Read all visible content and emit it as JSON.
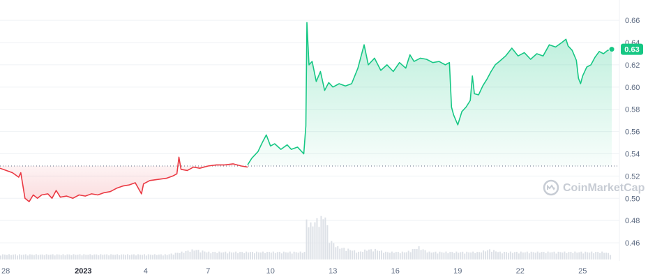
{
  "chart_data": {
    "type": "line",
    "y_ticks": [
      "0.66",
      "0.64",
      "0.62",
      "0.60",
      "0.58",
      "0.56",
      "0.54",
      "0.52",
      "0.50",
      "0.48",
      "0.46"
    ],
    "y_range": [
      0.445,
      0.672
    ],
    "x_ticks": [
      {
        "label": "28",
        "bold": false,
        "x": 0
      },
      {
        "label": "2023",
        "bold": true,
        "x": 4
      },
      {
        "label": "4",
        "bold": false,
        "x": 7
      },
      {
        "label": "7",
        "bold": false,
        "x": 10
      },
      {
        "label": "10",
        "bold": false,
        "x": 13
      },
      {
        "label": "13",
        "bold": false,
        "x": 16
      },
      {
        "label": "16",
        "bold": false,
        "x": 19
      },
      {
        "label": "19",
        "bold": false,
        "x": 22
      },
      {
        "label": "22",
        "bold": false,
        "x": 25
      },
      {
        "label": "25",
        "bold": false,
        "x": 28
      }
    ],
    "x_range": [
      0,
      29.5
    ],
    "reference_price": 0.529,
    "current_price_label": "0.63",
    "series": [
      {
        "values": [
          [
            0.0,
            0.527
          ],
          [
            0.3,
            0.525
          ],
          [
            0.6,
            0.523
          ],
          [
            0.9,
            0.519
          ],
          [
            1.0,
            0.523
          ],
          [
            1.2,
            0.5
          ],
          [
            1.4,
            0.497
          ],
          [
            1.6,
            0.503
          ],
          [
            1.8,
            0.5
          ],
          [
            2.0,
            0.503
          ],
          [
            2.3,
            0.504
          ],
          [
            2.5,
            0.5
          ],
          [
            2.7,
            0.507
          ],
          [
            2.9,
            0.501
          ],
          [
            3.2,
            0.502
          ],
          [
            3.5,
            0.5
          ],
          [
            3.8,
            0.503
          ],
          [
            4.1,
            0.502
          ],
          [
            4.4,
            0.504
          ],
          [
            4.7,
            0.503
          ],
          [
            5.0,
            0.505
          ],
          [
            5.3,
            0.506
          ],
          [
            5.6,
            0.509
          ],
          [
            5.9,
            0.511
          ],
          [
            6.2,
            0.512
          ],
          [
            6.5,
            0.514
          ],
          [
            6.8,
            0.504
          ],
          [
            6.9,
            0.513
          ],
          [
            7.2,
            0.516
          ],
          [
            7.6,
            0.517
          ],
          [
            8.0,
            0.518
          ],
          [
            8.3,
            0.52
          ],
          [
            8.5,
            0.522
          ],
          [
            8.6,
            0.537
          ],
          [
            8.7,
            0.526
          ],
          [
            9.0,
            0.525
          ],
          [
            9.3,
            0.528
          ],
          [
            9.6,
            0.527
          ],
          [
            10.0,
            0.529
          ],
          [
            10.4,
            0.53
          ],
          [
            10.8,
            0.53
          ],
          [
            11.2,
            0.531
          ],
          [
            11.6,
            0.529
          ],
          [
            11.9,
            0.528
          ]
        ],
        "color": "#ea3943"
      },
      {
        "values": [
          [
            11.9,
            0.53
          ],
          [
            12.1,
            0.536
          ],
          [
            12.4,
            0.542
          ],
          [
            12.6,
            0.55
          ],
          [
            12.8,
            0.557
          ],
          [
            13.0,
            0.547
          ],
          [
            13.2,
            0.549
          ],
          [
            13.5,
            0.544
          ],
          [
            13.8,
            0.548
          ],
          [
            14.0,
            0.544
          ],
          [
            14.3,
            0.546
          ],
          [
            14.6,
            0.54
          ],
          [
            14.7,
            0.565
          ],
          [
            14.75,
            0.658
          ],
          [
            14.85,
            0.62
          ],
          [
            15.0,
            0.623
          ],
          [
            15.2,
            0.605
          ],
          [
            15.4,
            0.614
          ],
          [
            15.6,
            0.597
          ],
          [
            15.8,
            0.604
          ],
          [
            16.0,
            0.6
          ],
          [
            16.3,
            0.603
          ],
          [
            16.6,
            0.601
          ],
          [
            16.9,
            0.603
          ],
          [
            17.2,
            0.617
          ],
          [
            17.5,
            0.638
          ],
          [
            17.7,
            0.62
          ],
          [
            18.0,
            0.626
          ],
          [
            18.3,
            0.615
          ],
          [
            18.6,
            0.62
          ],
          [
            18.9,
            0.614
          ],
          [
            19.2,
            0.622
          ],
          [
            19.5,
            0.617
          ],
          [
            19.7,
            0.629
          ],
          [
            19.9,
            0.623
          ],
          [
            20.2,
            0.626
          ],
          [
            20.5,
            0.625
          ],
          [
            20.8,
            0.622
          ],
          [
            21.1,
            0.623
          ],
          [
            21.4,
            0.62
          ],
          [
            21.6,
            0.622
          ],
          [
            21.7,
            0.582
          ],
          [
            21.8,
            0.575
          ],
          [
            22.0,
            0.566
          ],
          [
            22.2,
            0.578
          ],
          [
            22.4,
            0.582
          ],
          [
            22.6,
            0.588
          ],
          [
            22.7,
            0.61
          ],
          [
            22.8,
            0.594
          ],
          [
            23.0,
            0.593
          ],
          [
            23.2,
            0.601
          ],
          [
            23.4,
            0.607
          ],
          [
            23.6,
            0.614
          ],
          [
            23.8,
            0.62
          ],
          [
            24.0,
            0.623
          ],
          [
            24.3,
            0.628
          ],
          [
            24.6,
            0.635
          ],
          [
            24.9,
            0.628
          ],
          [
            25.2,
            0.631
          ],
          [
            25.5,
            0.625
          ],
          [
            25.8,
            0.63
          ],
          [
            26.1,
            0.628
          ],
          [
            26.4,
            0.638
          ],
          [
            26.7,
            0.636
          ],
          [
            27.0,
            0.64
          ],
          [
            27.2,
            0.643
          ],
          [
            27.3,
            0.637
          ],
          [
            27.5,
            0.633
          ],
          [
            27.7,
            0.624
          ],
          [
            27.8,
            0.608
          ],
          [
            27.9,
            0.603
          ],
          [
            28.0,
            0.61
          ],
          [
            28.2,
            0.618
          ],
          [
            28.4,
            0.62
          ],
          [
            28.6,
            0.627
          ],
          [
            28.8,
            0.632
          ],
          [
            29.0,
            0.63
          ],
          [
            29.2,
            0.633
          ],
          [
            29.4,
            0.634
          ]
        ],
        "color": "#16c784"
      }
    ],
    "volume": [
      [
        0.0,
        2
      ],
      [
        1.0,
        2
      ],
      [
        2.0,
        2
      ],
      [
        3.0,
        2
      ],
      [
        4.0,
        2
      ],
      [
        5.0,
        2
      ],
      [
        6.0,
        2
      ],
      [
        7.0,
        2
      ],
      [
        8.0,
        2
      ],
      [
        8.7,
        3
      ],
      [
        9.3,
        4
      ],
      [
        10.0,
        3
      ],
      [
        11.0,
        3
      ],
      [
        12.0,
        3
      ],
      [
        13.0,
        3
      ],
      [
        14.0,
        3
      ],
      [
        14.6,
        3
      ],
      [
        14.7,
        16
      ],
      [
        14.9,
        14
      ],
      [
        15.2,
        16
      ],
      [
        15.5,
        17
      ],
      [
        15.6,
        18
      ],
      [
        15.8,
        8
      ],
      [
        16.2,
        5
      ],
      [
        16.8,
        4
      ],
      [
        17.2,
        3
      ],
      [
        17.6,
        4
      ],
      [
        18.0,
        4
      ],
      [
        18.5,
        3
      ],
      [
        19.0,
        3
      ],
      [
        19.5,
        3
      ],
      [
        19.8,
        4
      ],
      [
        20.1,
        5
      ],
      [
        20.3,
        4
      ],
      [
        20.6,
        3
      ],
      [
        21.0,
        3
      ],
      [
        21.5,
        3
      ],
      [
        22.0,
        3
      ],
      [
        22.5,
        3
      ],
      [
        23.0,
        3
      ],
      [
        23.5,
        4
      ],
      [
        24.0,
        3
      ],
      [
        24.5,
        3
      ],
      [
        25.0,
        3
      ],
      [
        25.5,
        3
      ],
      [
        26.0,
        3
      ],
      [
        26.5,
        3
      ],
      [
        27.0,
        3
      ],
      [
        27.5,
        3
      ],
      [
        28.0,
        3
      ],
      [
        28.5,
        3
      ],
      [
        29.0,
        3
      ],
      [
        29.4,
        2
      ]
    ],
    "watermark": "CoinMarketCap"
  }
}
